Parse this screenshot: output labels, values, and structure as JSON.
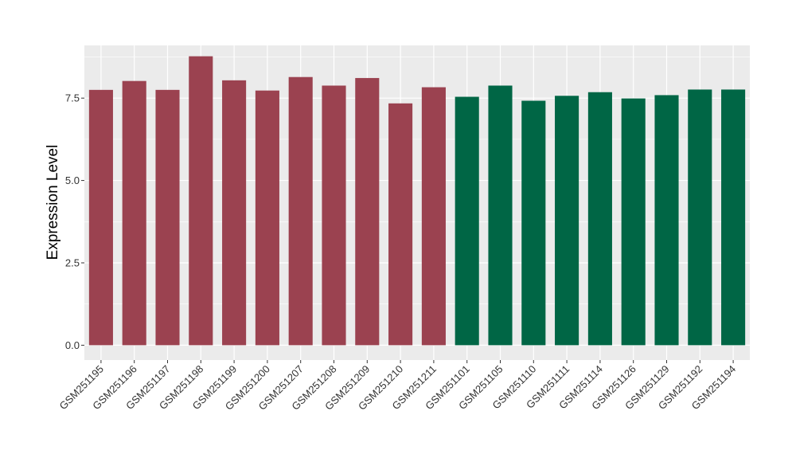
{
  "chart_data": {
    "type": "bar",
    "title": "",
    "xlabel": "",
    "ylabel": "Expression Level",
    "ylim": [
      -0.45,
      9.1
    ],
    "yticks": [
      "0.0",
      "2.5",
      "5.0",
      "7.5"
    ],
    "grid": true,
    "legend": "none",
    "panel_color": "#EBEBEB",
    "categories": [
      "GSM251195",
      "GSM251196",
      "GSM251197",
      "GSM251198",
      "GSM251199",
      "GSM251200",
      "GSM251207",
      "GSM251208",
      "GSM251209",
      "GSM251210",
      "GSM251211",
      "GSM251101",
      "GSM251105",
      "GSM251110",
      "GSM251111",
      "GSM251114",
      "GSM251126",
      "GSM251129",
      "GSM251192",
      "GSM251194"
    ],
    "values": [
      7.75,
      8.02,
      7.75,
      8.77,
      8.04,
      7.73,
      8.14,
      7.88,
      8.11,
      7.34,
      7.83,
      7.54,
      7.88,
      7.42,
      7.57,
      7.68,
      7.49,
      7.59,
      7.76,
      7.76
    ],
    "bar_colors": [
      "#9B4250",
      "#9B4250",
      "#9B4250",
      "#9B4250",
      "#9B4250",
      "#9B4250",
      "#9B4250",
      "#9B4250",
      "#9B4250",
      "#9B4250",
      "#9B4250",
      "#006645",
      "#006645",
      "#006645",
      "#006645",
      "#006645",
      "#006645",
      "#006645",
      "#006645",
      "#006645"
    ]
  }
}
